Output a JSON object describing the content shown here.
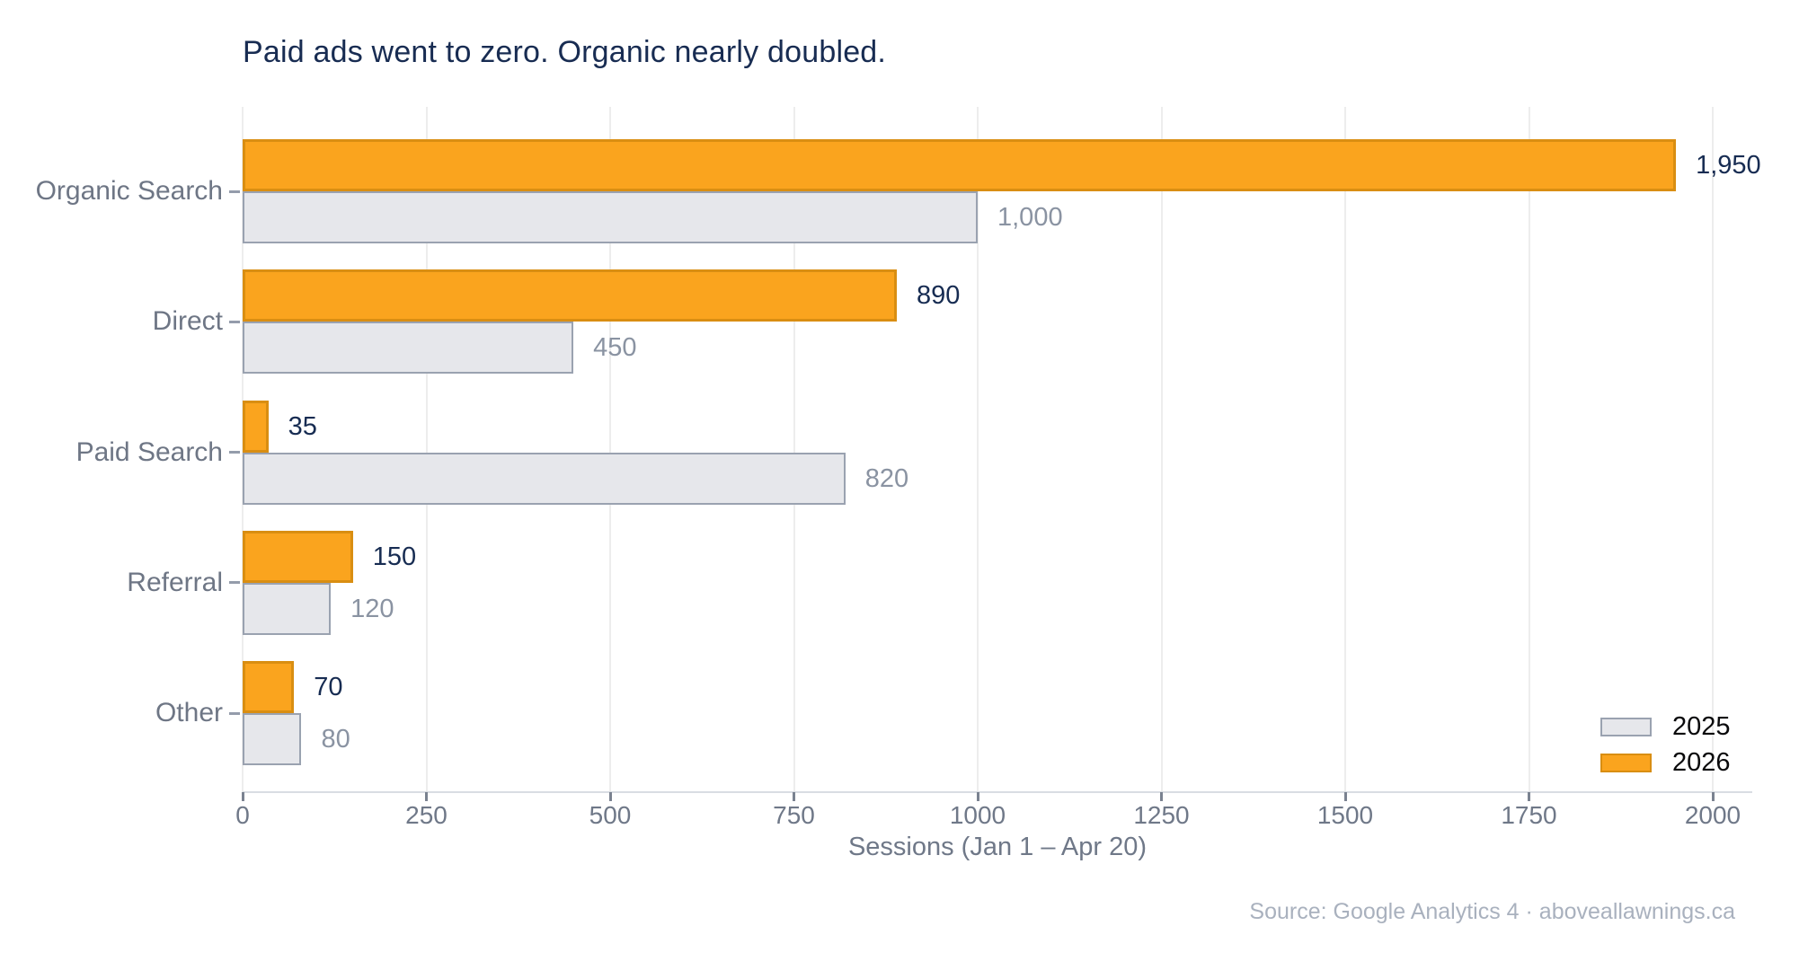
{
  "title": "Paid ads went to zero. Organic nearly doubled.",
  "source": "Source: Google Analytics 4 · aboveallawnings.ca",
  "colors": {
    "accent_orange": "#FAA41E",
    "accent_orange_edge": "#D98E12",
    "gray_fill": "#E6E7EB",
    "gray_edge": "#9AA2B0",
    "navy_text": "#172C52",
    "muted_text": "#6F7888",
    "value_text_2025": "#8A93A2",
    "gridline": "#EDEDED",
    "source_text": "#A9B1BE"
  },
  "chart_data": {
    "type": "bar",
    "orientation": "horizontal",
    "title": "Paid ads went to zero. Organic nearly doubled.",
    "categories": [
      "Organic Search",
      "Direct",
      "Paid Search",
      "Referral",
      "Other"
    ],
    "series": [
      {
        "name": "2025",
        "values": [
          1000,
          450,
          820,
          120,
          80
        ],
        "value_labels": [
          "1,000",
          "450",
          "820",
          "120",
          "80"
        ],
        "color": "#E6E7EB"
      },
      {
        "name": "2026",
        "values": [
          1950,
          890,
          35,
          150,
          70
        ],
        "value_labels": [
          "1,950",
          "890",
          "35",
          "150",
          "70"
        ],
        "color": "#FAA41E"
      }
    ],
    "xlabel": "Sessions (Jan 1 – Apr 20)",
    "xticks": [
      0,
      250,
      500,
      750,
      1000,
      1250,
      1500,
      1750,
      2000
    ],
    "xtick_labels": [
      "0",
      "250",
      "500",
      "750",
      "1000",
      "1250",
      "1500",
      "1750",
      "2000"
    ],
    "xlim": [
      0,
      2055
    ],
    "grid": "vertical",
    "legend_position": "lower right",
    "legend_order": [
      "2025",
      "2026"
    ]
  }
}
